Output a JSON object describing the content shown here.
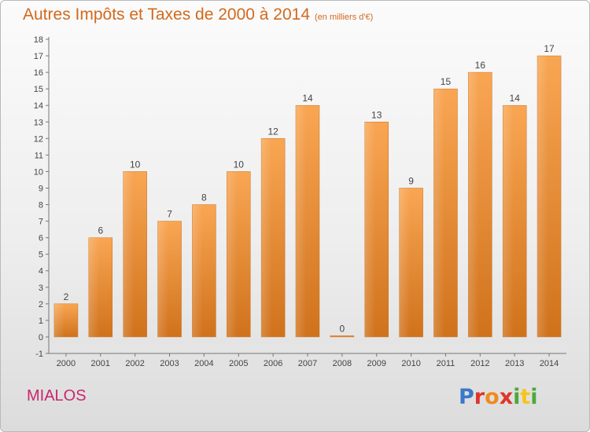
{
  "title": "Autres Impôts et Taxes de 2000 à 2014",
  "unit": "(en milliers d'€)",
  "place": "MIALOS",
  "logo": {
    "p": "P",
    "r": "r",
    "o": "o",
    "x": "x",
    "i": "i",
    "t": "t",
    "i2": "i"
  },
  "colors": {
    "bar": "#f0902e",
    "title": "#d2691e",
    "place": "#c8286e"
  },
  "chart_data": {
    "type": "bar",
    "title": "Autres Impôts et Taxes de 2000 à 2014",
    "xlabel": "",
    "ylabel": "",
    "ylim": [
      -1,
      18
    ],
    "yticks": [
      -1,
      0,
      1,
      2,
      3,
      4,
      5,
      6,
      7,
      8,
      9,
      10,
      11,
      12,
      13,
      14,
      15,
      16,
      17,
      18
    ],
    "categories": [
      "2000",
      "2001",
      "2002",
      "2003",
      "2004",
      "2005",
      "2006",
      "2007",
      "2008",
      "2009",
      "2010",
      "2011",
      "2012",
      "2013",
      "2014"
    ],
    "values": [
      2,
      6,
      10,
      7,
      8,
      10,
      12,
      14,
      0,
      13,
      9,
      15,
      16,
      14,
      17
    ],
    "grid": false,
    "legend": "none"
  }
}
